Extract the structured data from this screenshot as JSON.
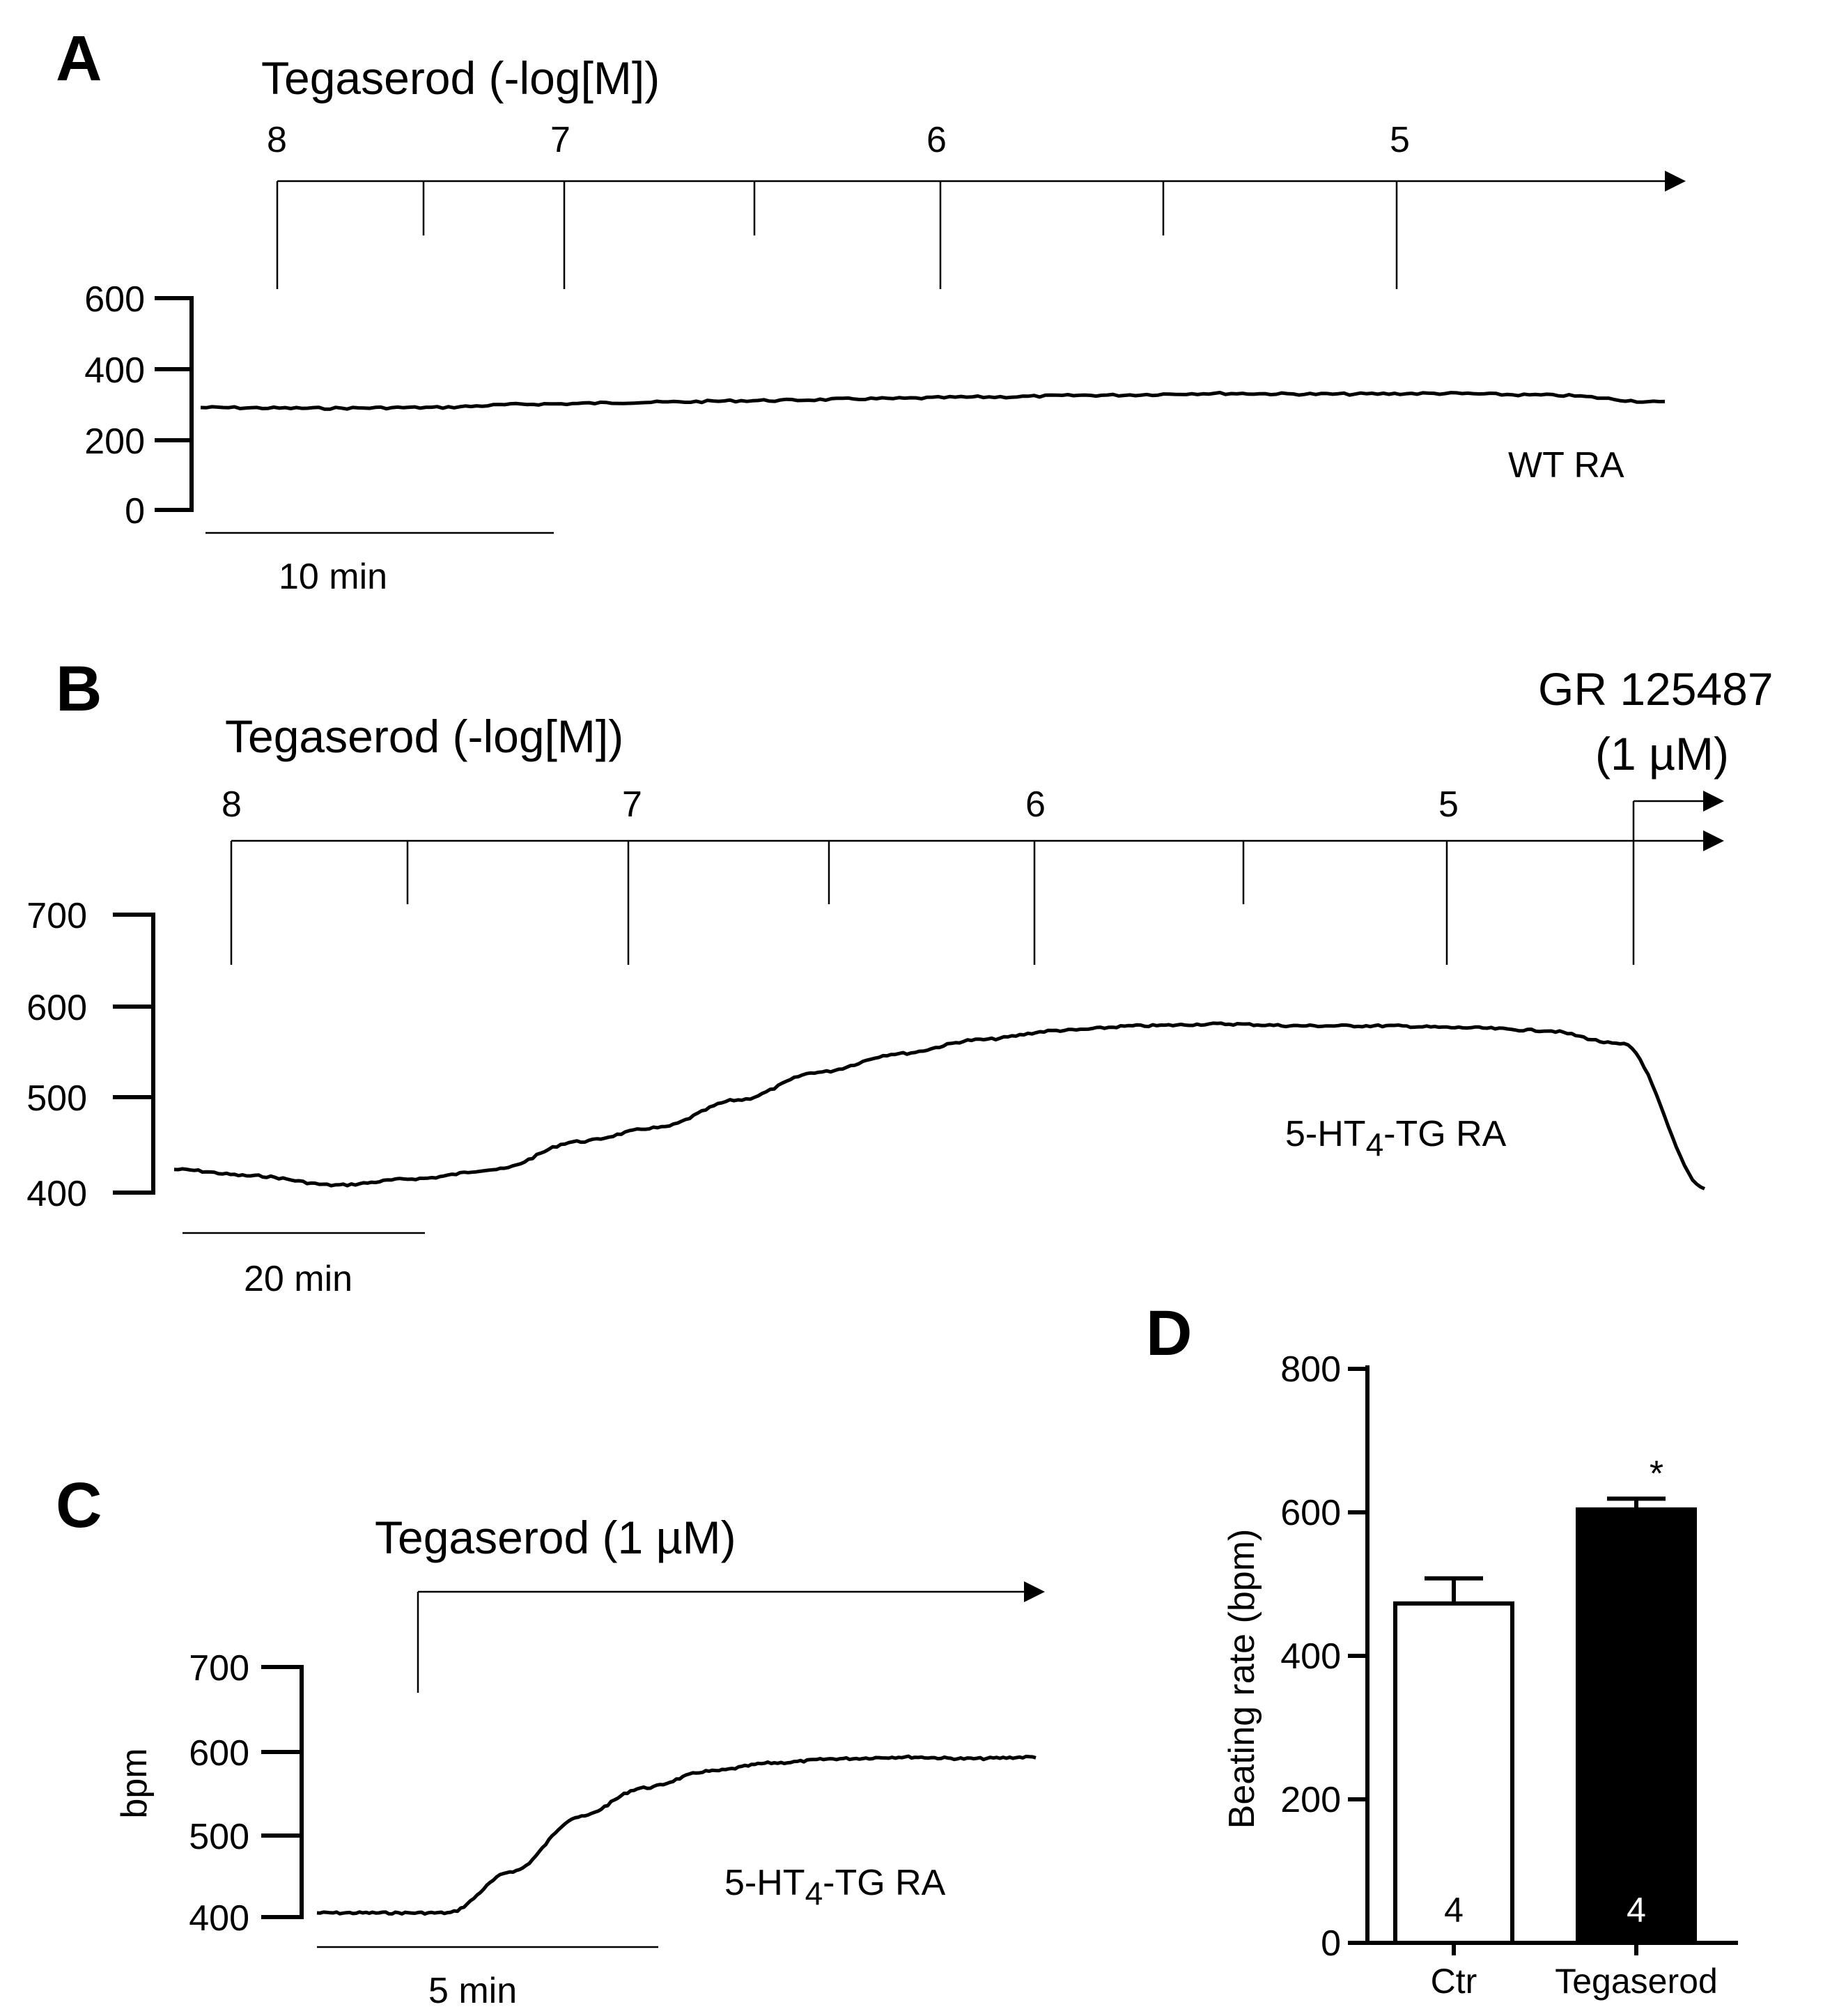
{
  "panels": {
    "A": {
      "label": "A",
      "drug_label": "Tegaserod (-log[M])",
      "conc_labels": [
        "8",
        "7",
        "6",
        "5"
      ],
      "tissue": "WT RA",
      "scale_bar": "10 min"
    },
    "B": {
      "label": "B",
      "drug_label": "Tegaserod (-log[M])",
      "conc_labels": [
        "8",
        "7",
        "6",
        "5"
      ],
      "tissue_prefix": "5-HT",
      "tissue_sub": "4",
      "tissue_suffix": "-TG RA",
      "antagonist_name": "GR 125487",
      "antagonist_conc": "(1 µM)",
      "scale_bar": "20 min"
    },
    "C": {
      "label": "C",
      "drug_label": "Tegaserod (1 µM)",
      "ylabel": "bpm",
      "tissue_prefix": "5-HT",
      "tissue_sub": "4",
      "tissue_suffix": "-TG RA",
      "scale_bar": "5 min"
    },
    "D": {
      "label": "D",
      "ylabel": "Beating rate (bpm)",
      "significance": "*"
    }
  },
  "chart_data": [
    {
      "panel": "A",
      "type": "line",
      "ylim": [
        0,
        600
      ],
      "yticks": [
        "600",
        "400",
        "200",
        "0"
      ],
      "series": [
        {
          "values": [
            290,
            288,
            290,
            300,
            305,
            310,
            315,
            320,
            325,
            330,
            328,
            330,
            325,
            305
          ]
        }
      ]
    },
    {
      "panel": "B",
      "type": "line",
      "ylim": [
        400,
        700
      ],
      "yticks": [
        "700",
        "600",
        "500",
        "400"
      ],
      "series": [
        {
          "values": [
            425,
            418,
            408,
            415,
            425,
            455,
            470,
            500,
            530,
            550,
            565,
            575,
            580,
            582,
            580,
            580,
            578,
            575,
            560,
            405
          ]
        }
      ]
    },
    {
      "panel": "C",
      "type": "line",
      "ylim": [
        400,
        700
      ],
      "yticks": [
        "700",
        "600",
        "500",
        "400"
      ],
      "series": [
        {
          "values": [
            405,
            405,
            405,
            455,
            520,
            555,
            575,
            585,
            590,
            592,
            590,
            592
          ]
        }
      ]
    },
    {
      "panel": "D",
      "type": "bar",
      "categories": [
        "Ctr",
        "Tegaserod"
      ],
      "values": [
        473,
        604
      ],
      "errors": [
        35,
        15
      ],
      "n": [
        "4",
        "4"
      ],
      "ylim": [
        0,
        800
      ],
      "yticks": [
        "800",
        "600",
        "400",
        "200",
        "0"
      ],
      "colors": [
        "#ffffff",
        "#000000"
      ]
    }
  ]
}
